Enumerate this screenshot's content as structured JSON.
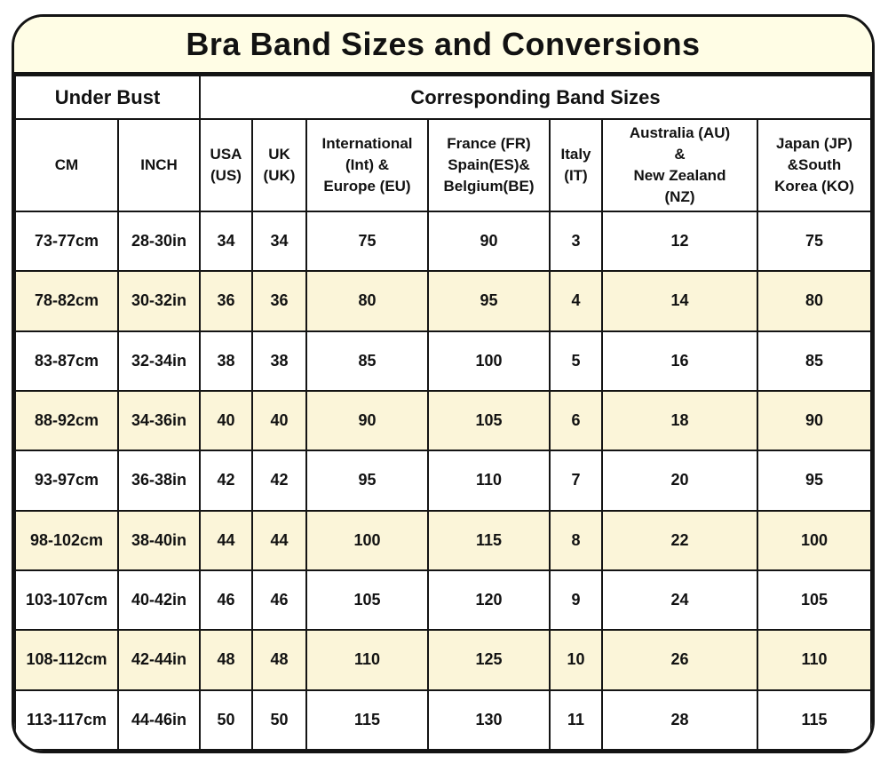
{
  "title": "Bra Band Sizes and Conversions",
  "colors": {
    "band_bg": "#FFFDE5",
    "row_alt_bg": "#FBF5D9",
    "border": "#141414",
    "text": "#121212",
    "row_bg": "#FFFFFF"
  },
  "table": {
    "group_headers": {
      "under_bust": "Under Bust",
      "band_sizes": "Corresponding Band Sizes"
    },
    "column_headers": [
      "CM",
      "INCH",
      "USA\n(US)",
      "UK\n(UK)",
      "International\n(Int) &\nEurope (EU)",
      "France (FR)\nSpain(ES)&\nBelgium(BE)",
      "Italy\n(IT)",
      "Australia (AU)\n&\nNew Zealand\n(NZ)",
      "Japan (JP)\n&South\nKorea (KO)"
    ],
    "rows": [
      [
        "73-77cm",
        "28-30in",
        "34",
        "34",
        "75",
        "90",
        "3",
        "12",
        "75"
      ],
      [
        "78-82cm",
        "30-32in",
        "36",
        "36",
        "80",
        "95",
        "4",
        "14",
        "80"
      ],
      [
        "83-87cm",
        "32-34in",
        "38",
        "38",
        "85",
        "100",
        "5",
        "16",
        "85"
      ],
      [
        "88-92cm",
        "34-36in",
        "40",
        "40",
        "90",
        "105",
        "6",
        "18",
        "90"
      ],
      [
        "93-97cm",
        "36-38in",
        "42",
        "42",
        "95",
        "110",
        "7",
        "20",
        "95"
      ],
      [
        "98-102cm",
        "38-40in",
        "44",
        "44",
        "100",
        "115",
        "8",
        "22",
        "100"
      ],
      [
        "103-107cm",
        "40-42in",
        "46",
        "46",
        "105",
        "120",
        "9",
        "24",
        "105"
      ],
      [
        "108-112cm",
        "42-44in",
        "48",
        "48",
        "110",
        "125",
        "10",
        "26",
        "110"
      ],
      [
        "113-117cm",
        "44-46in",
        "50",
        "50",
        "115",
        "130",
        "11",
        "28",
        "115"
      ]
    ]
  },
  "chart_data": {
    "type": "table",
    "title": "Bra Band Sizes and Conversions",
    "column_groups": [
      {
        "label": "Under Bust",
        "span": 2
      },
      {
        "label": "Corresponding Band Sizes",
        "span": 7
      }
    ],
    "columns": [
      "CM",
      "INCH",
      "USA (US)",
      "UK (UK)",
      "International (Int) & Europe (EU)",
      "France (FR) Spain(ES)& Belgium(BE)",
      "Italy (IT)",
      "Australia (AU) & New Zealand (NZ)",
      "Japan (JP) &South Korea (KO)"
    ],
    "rows": [
      [
        "73-77cm",
        "28-30in",
        34,
        34,
        75,
        90,
        3,
        12,
        75
      ],
      [
        "78-82cm",
        "30-32in",
        36,
        36,
        80,
        95,
        4,
        14,
        80
      ],
      [
        "83-87cm",
        "32-34in",
        38,
        38,
        85,
        100,
        5,
        16,
        85
      ],
      [
        "88-92cm",
        "34-36in",
        40,
        40,
        90,
        105,
        6,
        18,
        90
      ],
      [
        "93-97cm",
        "36-38in",
        42,
        42,
        95,
        110,
        7,
        20,
        95
      ],
      [
        "98-102cm",
        "38-40in",
        44,
        44,
        100,
        115,
        8,
        22,
        100
      ],
      [
        "103-107cm",
        "40-42in",
        46,
        46,
        105,
        120,
        9,
        24,
        105
      ],
      [
        "108-112cm",
        "42-44in",
        48,
        48,
        110,
        125,
        10,
        26,
        110
      ],
      [
        "113-117cm",
        "44-46in",
        50,
        50,
        115,
        130,
        11,
        28,
        115
      ]
    ],
    "layout": {
      "striped_rows": "alternate cream starting at second data row",
      "all_text_bold": true,
      "rounded_outer_corners": true
    }
  }
}
